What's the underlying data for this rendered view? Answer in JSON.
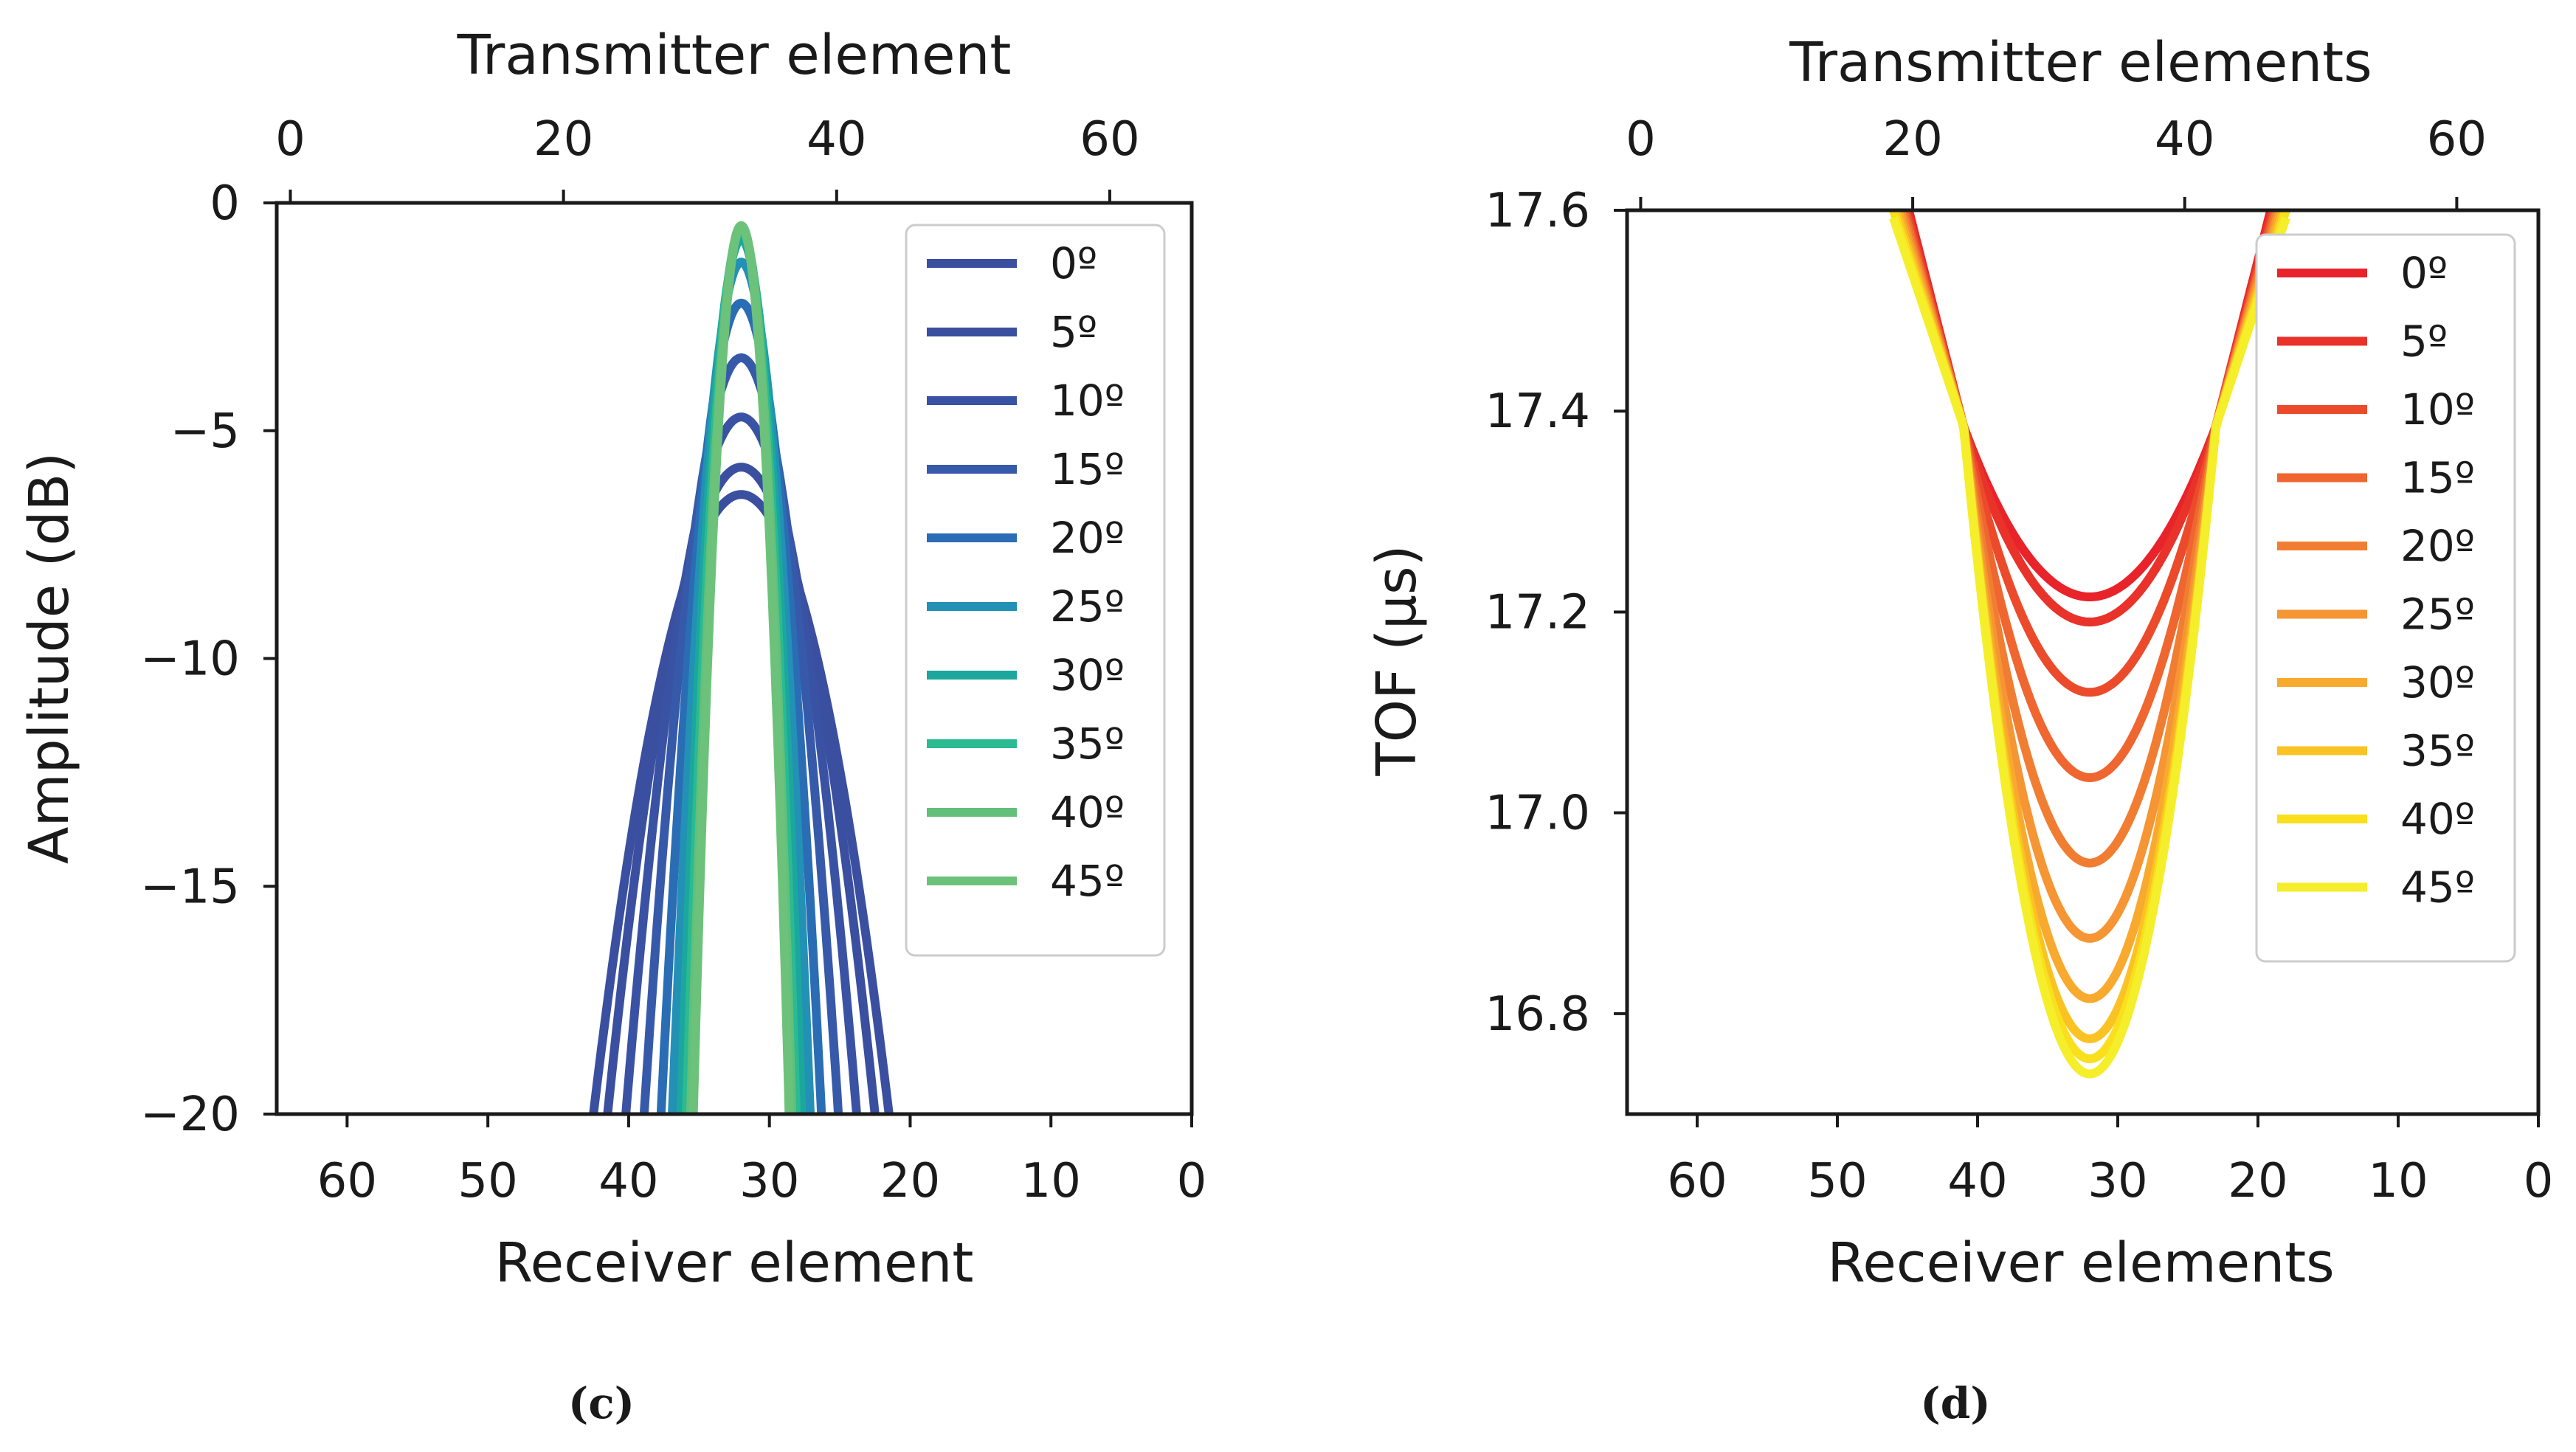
{
  "chart_data": [
    {
      "type": "line",
      "panel": "c",
      "caption": "(c)",
      "xlabel": "Receiver element",
      "x2label": "Transmitter element",
      "ylabel": "Amplitude (dB)",
      "xlim": [
        65,
        0
      ],
      "x2lim": [
        -1,
        66
      ],
      "ylim": [
        -20,
        0
      ],
      "xticks": [
        "60",
        "50",
        "40",
        "30",
        "20",
        "10",
        "0"
      ],
      "xtick_values": [
        60,
        50,
        40,
        30,
        20,
        10,
        0
      ],
      "x2ticks": [
        "0",
        "20",
        "40",
        "60"
      ],
      "x2tick_values": [
        0,
        20,
        40,
        60
      ],
      "yticks": [
        "0",
        "−5",
        "−10",
        "−15",
        "−20"
      ],
      "ytick_values": [
        0,
        -5,
        -10,
        -15,
        -20
      ],
      "legend_position": "upper-right",
      "center": 32,
      "series": [
        {
          "name": "0º",
          "color": "#3b4fa0",
          "peak": -6.4,
          "half_width_at_min": 10.5
        },
        {
          "name": "5º",
          "color": "#3b4fa0",
          "peak": -5.8,
          "half_width_at_min": 9.5
        },
        {
          "name": "10º",
          "color": "#3a52a3",
          "peak": -4.7,
          "half_width_at_min": 8.2
        },
        {
          "name": "15º",
          "color": "#3759a9",
          "peak": -3.4,
          "half_width_at_min": 6.9
        },
        {
          "name": "20º",
          "color": "#2a6db5",
          "peak": -2.2,
          "half_width_at_min": 5.7
        },
        {
          "name": "25º",
          "color": "#2390b5",
          "peak": -1.3,
          "half_width_at_min": 4.9
        },
        {
          "name": "30º",
          "color": "#1ba79e",
          "peak": -0.8,
          "half_width_at_min": 4.3
        },
        {
          "name": "35º",
          "color": "#2bba92",
          "peak": -0.6,
          "half_width_at_min": 3.9
        },
        {
          "name": "40º",
          "color": "#62c07b",
          "peak": -0.5,
          "half_width_at_min": 3.6
        },
        {
          "name": "45º",
          "color": "#6cc27a",
          "peak": -0.5,
          "half_width_at_min": 3.4
        }
      ]
    },
    {
      "type": "line",
      "panel": "d",
      "caption": "(d)",
      "xlabel": "Receiver elements",
      "x2label": "Transmitter elements",
      "ylabel": "TOF (µs)",
      "xlim": [
        65,
        0
      ],
      "x2lim": [
        -1,
        66
      ],
      "ylim": [
        16.7,
        17.6
      ],
      "xticks": [
        "60",
        "50",
        "40",
        "30",
        "20",
        "10",
        "0"
      ],
      "xtick_values": [
        60,
        50,
        40,
        30,
        20,
        10,
        0
      ],
      "x2ticks": [
        "0",
        "20",
        "40",
        "60"
      ],
      "x2tick_values": [
        0,
        20,
        40,
        60
      ],
      "yticks": [
        "17.6",
        "17.4",
        "17.2",
        "17.0",
        "16.8"
      ],
      "ytick_values": [
        17.6,
        17.4,
        17.2,
        17.0,
        16.8
      ],
      "legend_position": "upper-right",
      "center": 32,
      "series": [
        {
          "name": "0º",
          "color": "#e8232a",
          "min": 17.215
        },
        {
          "name": "5º",
          "color": "#e8322a",
          "min": 17.19
        },
        {
          "name": "10º",
          "color": "#eb4b2b",
          "min": 17.12
        },
        {
          "name": "15º",
          "color": "#ef6630",
          "min": 17.035
        },
        {
          "name": "20º",
          "color": "#f17d32",
          "min": 16.95
        },
        {
          "name": "25º",
          "color": "#f59533",
          "min": 16.875
        },
        {
          "name": "30º",
          "color": "#f8aa2f",
          "min": 16.815
        },
        {
          "name": "35º",
          "color": "#fbc224",
          "min": 16.775
        },
        {
          "name": "40º",
          "color": "#f9df1c",
          "min": 16.755
        },
        {
          "name": "45º",
          "color": "#f5ee2a",
          "min": 16.74
        }
      ]
    }
  ]
}
